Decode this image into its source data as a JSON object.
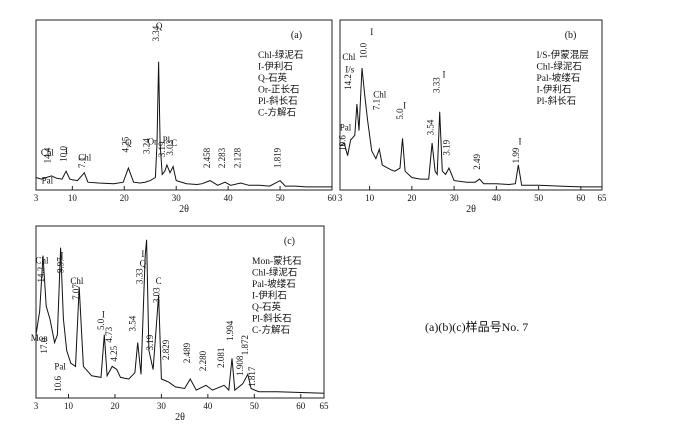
{
  "caption": "(a)(b)(c)样品号No. 7",
  "panels": [
    {
      "panel_label": "(a)",
      "x_axis_label": "2θ",
      "ticks": [
        "3",
        "10",
        "20",
        "30",
        "40",
        "50",
        "60"
      ],
      "legend": [
        "Chl-绿泥石",
        "I-伊利石",
        "Q-石英",
        "Or-正长石",
        "Pl-斜长石",
        "C-方解石"
      ],
      "annotations": [
        {
          "text": "Chl",
          "x": 5.2,
          "y": 0.22
        },
        {
          "text": "14.4",
          "x": 5.8,
          "y": 0.17
        },
        {
          "text": "I",
          "x": 8.9,
          "y": 0.23
        },
        {
          "text": "10.0",
          "x": 8.9,
          "y": 0.18
        },
        {
          "text": "Chl",
          "x": 12.4,
          "y": 0.19
        },
        {
          "text": "7.1",
          "x": 12.4,
          "y": 0.14
        },
        {
          "text": "Pal",
          "x": 5.2,
          "y": 0.04
        },
        {
          "text": "4.25",
          "x": 20.8,
          "y": 0.24
        },
        {
          "text": "Q",
          "x": 20.8,
          "y": 0.285
        },
        {
          "text": "3.24",
          "x": 24.9,
          "y": 0.23
        },
        {
          "text": "Or",
          "x": 25.4,
          "y": 0.29
        },
        {
          "text": "3.34",
          "x": 26.7,
          "y": 0.95
        },
        {
          "text": "Q",
          "x": 26.7,
          "y": 1.03
        },
        {
          "text": "3.19",
          "x": 27.9,
          "y": 0.21
        },
        {
          "text": "Pl",
          "x": 28.1,
          "y": 0.3
        },
        {
          "text": "3.03",
          "x": 29.4,
          "y": 0.22
        },
        {
          "text": "C",
          "x": 29.6,
          "y": 0.28
        },
        {
          "text": "2.458",
          "x": 36.5,
          "y": 0.14
        },
        {
          "text": "2.283",
          "x": 39.4,
          "y": 0.14
        },
        {
          "text": "2.128",
          "x": 42.4,
          "y": 0.14
        },
        {
          "text": "1.819",
          "x": 50.1,
          "y": 0.14
        }
      ],
      "series": [
        {
          "x": [
            3,
            4,
            5,
            6,
            7,
            8,
            8.8,
            9.5,
            10,
            11,
            12.3,
            13,
            15,
            18,
            19.8,
            20.8,
            21.8,
            23,
            24,
            25,
            26,
            26.3,
            26.6,
            26.9,
            27.3,
            27.8,
            28.2,
            28.8,
            29.4,
            30,
            32,
            34,
            35,
            36.5,
            38,
            39.4,
            40.5,
            42.4,
            44,
            46,
            48,
            50,
            51,
            53,
            55,
            58,
            60
          ],
          "y": [
            0.08,
            0.07,
            0.08,
            0.09,
            0.075,
            0.07,
            0.12,
            0.07,
            0.065,
            0.06,
            0.11,
            0.05,
            0.045,
            0.04,
            0.05,
            0.14,
            0.05,
            0.045,
            0.05,
            0.06,
            0.08,
            0.3,
            0.82,
            0.3,
            0.1,
            0.12,
            0.16,
            0.11,
            0.15,
            0.06,
            0.04,
            0.035,
            0.04,
            0.06,
            0.03,
            0.05,
            0.03,
            0.045,
            0.03,
            0.03,
            0.025,
            0.06,
            0.025,
            0.025,
            0.02,
            0.02,
            0.02
          ]
        }
      ]
    },
    {
      "panel_label": "(b)",
      "x_axis_label": "2θ",
      "ticks": [
        "3",
        "10",
        "20",
        "30",
        "40",
        "50",
        "60",
        "65"
      ],
      "legend": [
        "I/S-伊蒙混层",
        "Chl-绿泥石",
        "Pal-坡缕石",
        "I-伊利石",
        "Pl-斜长石"
      ],
      "annotations": [
        {
          "text": "Chl",
          "x": 5.1,
          "y": 0.83
        },
        {
          "text": "I/s",
          "x": 5.3,
          "y": 0.75
        },
        {
          "text": "14.2",
          "x": 5.6,
          "y": 0.64
        },
        {
          "text": "I",
          "x": 10.5,
          "y": 0.99
        },
        {
          "text": "10.0",
          "x": 9.3,
          "y": 0.84
        },
        {
          "text": "10.6",
          "x": 4.3,
          "y": 0.25
        },
        {
          "text": "Pal",
          "x": 4.3,
          "y": 0.38
        },
        {
          "text": "Chl",
          "x": 12.4,
          "y": 0.59
        },
        {
          "text": "7.1",
          "x": 12.4,
          "y": 0.51
        },
        {
          "text": "5.0",
          "x": 17.9,
          "y": 0.45
        },
        {
          "text": "I",
          "x": 18.3,
          "y": 0.52
        },
        {
          "text": "3.54",
          "x": 25.1,
          "y": 0.35
        },
        {
          "text": "3.33",
          "x": 26.5,
          "y": 0.62
        },
        {
          "text": "I",
          "x": 27.6,
          "y": 0.72
        },
        {
          "text": "3.19",
          "x": 28.9,
          "y": 0.22
        },
        {
          "text": "2.49",
          "x": 36.1,
          "y": 0.13
        },
        {
          "text": "1.99",
          "x": 45.4,
          "y": 0.17
        },
        {
          "text": "I",
          "x": 45.6,
          "y": 0.29
        }
      ],
      "series": [
        {
          "x": [
            3,
            4,
            4.8,
            5.5,
            6.5,
            7,
            7.5,
            8.2,
            8.8,
            9.5,
            10.5,
            11.5,
            12.3,
            13,
            15,
            16,
            17.2,
            17.8,
            18.4,
            20,
            22,
            24,
            24.8,
            25.5,
            26,
            26.6,
            27.2,
            28,
            28.8,
            30,
            33,
            35,
            36,
            37,
            40,
            43,
            44.5,
            45.2,
            46,
            50,
            55,
            60,
            65
          ],
          "y": [
            0.28,
            0.3,
            0.22,
            0.32,
            0.35,
            0.55,
            0.38,
            0.78,
            0.62,
            0.45,
            0.25,
            0.2,
            0.26,
            0.16,
            0.13,
            0.12,
            0.14,
            0.33,
            0.12,
            0.08,
            0.07,
            0.07,
            0.3,
            0.12,
            0.1,
            0.5,
            0.12,
            0.1,
            0.14,
            0.06,
            0.05,
            0.05,
            0.07,
            0.04,
            0.04,
            0.035,
            0.04,
            0.16,
            0.03,
            0.03,
            0.025,
            0.02,
            0.02
          ]
        }
      ]
    },
    {
      "panel_label": "(c)",
      "x_axis_label": "2θ",
      "ticks": [
        "3",
        "10",
        "20",
        "30",
        "40",
        "50",
        "60",
        "65"
      ],
      "legend": [
        "Mon-蒙托石",
        "Chl-绿泥石",
        "Pal-坡缕石",
        "I-伊利石",
        "Q-石英",
        "Pl-斜长石",
        "C-方解石"
      ],
      "annotations": [
        {
          "text": "Chl",
          "x": 4.3,
          "y": 0.85
        },
        {
          "text": "14.2",
          "x": 4.7,
          "y": 0.73
        },
        {
          "text": "I",
          "x": 8.6,
          "y": 0.88
        },
        {
          "text": "9.97",
          "x": 8.9,
          "y": 0.79
        },
        {
          "text": "Mon",
          "x": 3.7,
          "y": 0.36
        },
        {
          "text": "17.0",
          "x": 5.4,
          "y": 0.28
        },
        {
          "text": "Pal",
          "x": 8.2,
          "y": 0.18
        },
        {
          "text": "10.6",
          "x": 8.4,
          "y": 0.04
        },
        {
          "text": "Chl",
          "x": 11.8,
          "y": 0.72
        },
        {
          "text": "7.07",
          "x": 12.3,
          "y": 0.62
        },
        {
          "text": "I",
          "x": 17.5,
          "y": 0.51
        },
        {
          "text": "5.0",
          "x": 17.6,
          "y": 0.43
        },
        {
          "text": "4.73",
          "x": 19.4,
          "y": 0.35
        },
        {
          "text": "4.25",
          "x": 20.4,
          "y": 0.23
        },
        {
          "text": "3.54",
          "x": 24.4,
          "y": 0.42
        },
        {
          "text": "I",
          "x": 26.0,
          "y": 0.89
        },
        {
          "text": "Q",
          "x": 26.0,
          "y": 0.83
        },
        {
          "text": "3.33",
          "x": 25.9,
          "y": 0.72
        },
        {
          "text": "C",
          "x": 29.4,
          "y": 0.72
        },
        {
          "text": "3.03",
          "x": 29.6,
          "y": 0.6
        },
        {
          "text": "3.19",
          "x": 28.2,
          "y": 0.3
        },
        {
          "text": "2.829",
          "x": 31.6,
          "y": 0.24
        },
        {
          "text": "2.489",
          "x": 36.2,
          "y": 0.22
        },
        {
          "text": "2.280",
          "x": 39.6,
          "y": 0.17
        },
        {
          "text": "2.081",
          "x": 43.5,
          "y": 0.19
        },
        {
          "text": "1.994",
          "x": 45.4,
          "y": 0.36
        },
        {
          "text": "1.908",
          "x": 47.6,
          "y": 0.14
        },
        {
          "text": "1.872",
          "x": 48.6,
          "y": 0.27
        },
        {
          "text": "1.817",
          "x": 50.1,
          "y": 0.07
        }
      ],
      "series": [
        {
          "x": [
            3,
            3.8,
            4.5,
            5.2,
            6,
            7,
            7.6,
            8.3,
            8.9,
            9.6,
            10.5,
            11.5,
            12.3,
            13.2,
            15,
            17,
            17.7,
            18.3,
            19.4,
            20.4,
            21.2,
            23,
            24.3,
            24.9,
            25.6,
            26.5,
            26.8,
            27.3,
            28.2,
            29.4,
            30,
            31.6,
            33,
            35,
            36.2,
            37.5,
            39.6,
            41,
            43.5,
            44.5,
            45.2,
            45.8,
            47.5,
            48.6,
            49.3,
            50.1,
            51,
            55,
            60,
            65
          ],
          "y": [
            0.4,
            0.55,
            0.9,
            0.58,
            0.5,
            0.35,
            0.4,
            0.95,
            0.5,
            0.3,
            0.22,
            0.2,
            0.7,
            0.2,
            0.14,
            0.13,
            0.4,
            0.14,
            0.2,
            0.18,
            0.13,
            0.12,
            0.16,
            0.35,
            0.15,
            0.9,
            1.0,
            0.3,
            0.18,
            0.65,
            0.12,
            0.1,
            0.07,
            0.06,
            0.12,
            0.05,
            0.08,
            0.05,
            0.08,
            0.05,
            0.25,
            0.05,
            0.09,
            0.15,
            0.06,
            0.05,
            0.04,
            0.04,
            0.035,
            0.03
          ]
        }
      ]
    }
  ]
}
